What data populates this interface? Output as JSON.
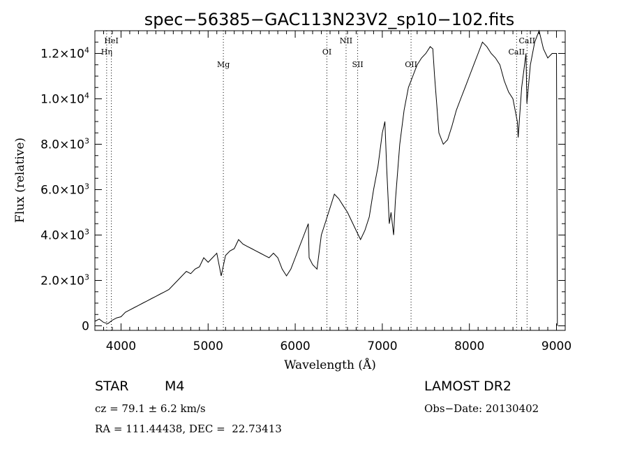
{
  "chart_data": {
    "type": "line",
    "title": "spec−56385−GAC113N23V2_sp10−102.fits",
    "xlabel": "Wavelength (Å)",
    "ylabel": "Flux (relative)",
    "xlim": [
      3700,
      9100
    ],
    "ylim": [
      -200,
      13000
    ],
    "x_ticks": [
      4000,
      5000,
      6000,
      7000,
      8000,
      9000
    ],
    "y_ticks": [
      {
        "value": 0,
        "mant": "0",
        "exp": ""
      },
      {
        "value": 2000,
        "mant": "2.0×10",
        "exp": "3"
      },
      {
        "value": 4000,
        "mant": "4.0×10",
        "exp": "3"
      },
      {
        "value": 6000,
        "mant": "6.0×10",
        "exp": "3"
      },
      {
        "value": 8000,
        "mant": "8.0×10",
        "exp": "3"
      },
      {
        "value": 10000,
        "mant": "1.0×10",
        "exp": "4"
      },
      {
        "value": 12000,
        "mant": "1.2×10",
        "exp": "4"
      }
    ],
    "grid": false,
    "lines": [
      {
        "name": "HeI",
        "x": 3889,
        "row": 0
      },
      {
        "name": "Hη",
        "x": 3835,
        "row": 1
      },
      {
        "name": "Mg",
        "x": 5175,
        "row": 2
      },
      {
        "name": "OI",
        "x": 6364,
        "row": 1
      },
      {
        "name": "NII",
        "x": 6584,
        "row": 0
      },
      {
        "name": "SII",
        "x": 6717,
        "row": 2
      },
      {
        "name": "OII",
        "x": 7330,
        "row": 2
      },
      {
        "name": "CaII",
        "x": 8542,
        "row": 1
      },
      {
        "name": "CaII",
        "x": 8662,
        "row": 0
      }
    ],
    "series": [
      {
        "x": [
          3700,
          3750,
          3800,
          3850,
          3900,
          3950,
          4000,
          4050,
          4100,
          4150,
          4200,
          4250,
          4300,
          4350,
          4400,
          4450,
          4500,
          4550,
          4600,
          4650,
          4700,
          4750,
          4800,
          4850,
          4900,
          4950,
          5000,
          5050,
          5100,
          5150,
          5200,
          5250,
          5300,
          5350,
          5400,
          5450,
          5500,
          5550,
          5600,
          5650,
          5700,
          5750,
          5800,
          5850,
          5900,
          5950,
          6000,
          6050,
          6100,
          6150,
          6160,
          6200,
          6250,
          6300,
          6350,
          6400,
          6450,
          6500,
          6550,
          6600,
          6650,
          6700,
          6750,
          6800,
          6850,
          6900,
          6950,
          7000,
          7030,
          7050,
          7080,
          7100,
          7130,
          7150,
          7200,
          7250,
          7300,
          7350,
          7400,
          7450,
          7500,
          7550,
          7580,
          7600,
          7620,
          7650,
          7700,
          7750,
          7800,
          7850,
          7900,
          7950,
          8000,
          8050,
          8100,
          8150,
          8200,
          8250,
          8300,
          8350,
          8400,
          8450,
          8500,
          8550,
          8560,
          8600,
          8650,
          8660,
          8700,
          8750,
          8800,
          8850,
          8900,
          8950,
          9000,
          9010
        ],
        "y": [
          200,
          300,
          150,
          100,
          250,
          350,
          400,
          600,
          700,
          800,
          900,
          1000,
          1100,
          1200,
          1300,
          1400,
          1500,
          1600,
          1800,
          2000,
          2200,
          2400,
          2300,
          2500,
          2600,
          3000,
          2800,
          3000,
          3200,
          2200,
          3100,
          3300,
          3400,
          3800,
          3600,
          3500,
          3400,
          3300,
          3200,
          3100,
          3000,
          3200,
          3000,
          2500,
          2200,
          2500,
          3000,
          3500,
          4000,
          4500,
          3000,
          2700,
          2500,
          4000,
          4600,
          5200,
          5800,
          5600,
          5300,
          5000,
          4600,
          4200,
          3800,
          4200,
          4800,
          6000,
          7000,
          8500,
          9000,
          7000,
          4500,
          5000,
          4000,
          5500,
          8000,
          9500,
          10500,
          11000,
          11500,
          11800,
          12000,
          12300,
          12200,
          11000,
          10000,
          8500,
          8000,
          8200,
          8800,
          9500,
          10000,
          10500,
          11000,
          11500,
          12000,
          12500,
          12300,
          12000,
          11800,
          11500,
          10800,
          10300,
          10000,
          9000,
          8300,
          10500,
          12000,
          9800,
          11500,
          12500,
          13000,
          12200,
          11800,
          12000,
          12000,
          0
        ]
      }
    ]
  },
  "info": {
    "class_label": "STAR",
    "subclass": "M4",
    "survey": "LAMOST DR2",
    "redshift": "cz = 79.1 ± 6.2 km/s",
    "obs_date": "Obs−Date: 20130402",
    "coords": "RA = 111.44438, DEC =  22.73413"
  },
  "colors": {
    "background": "#ffffff",
    "ink": "#000000"
  }
}
